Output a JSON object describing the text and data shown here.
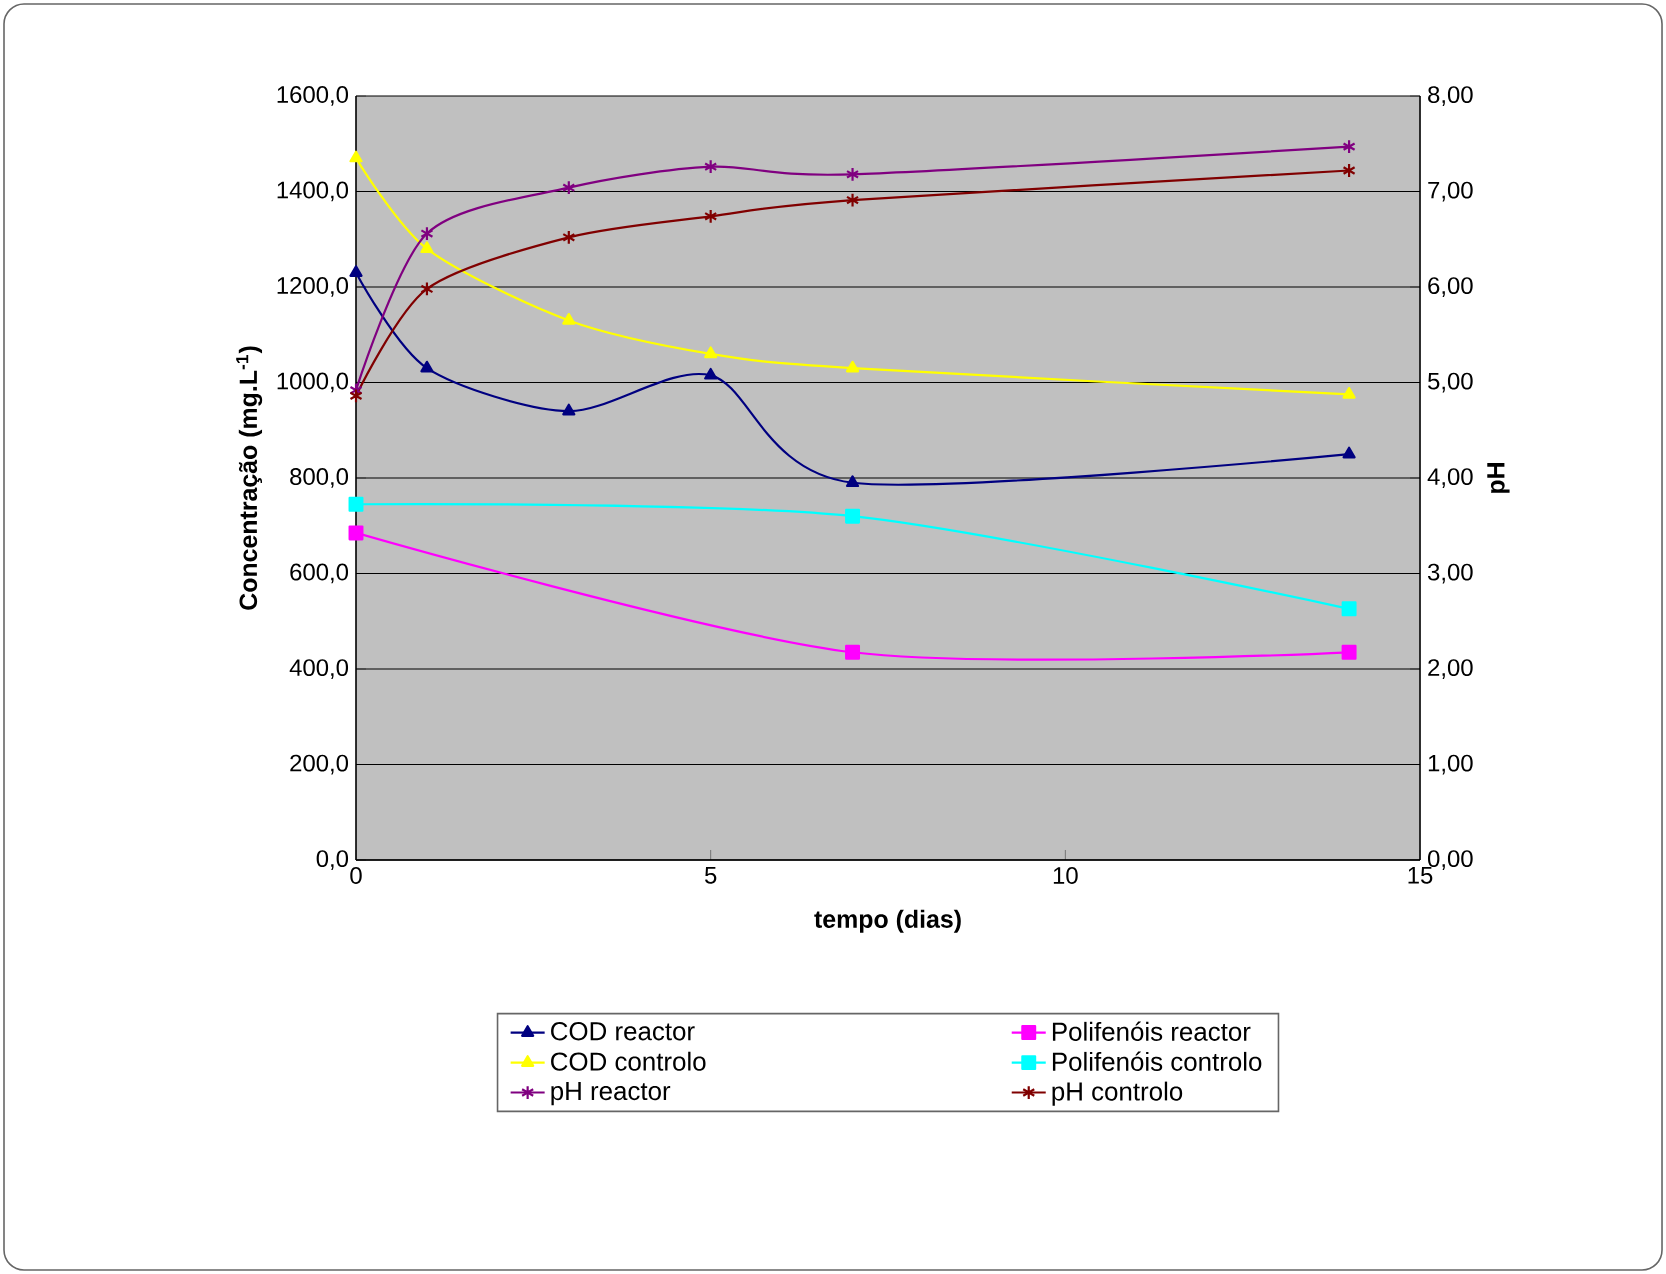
{
  "chart_data": {
    "type": "line",
    "xlabel": "tempo (dias)",
    "ylabel": "Concentração (mg.L$^{-1}$)",
    "y2label": "pH",
    "x": [
      0,
      1,
      3,
      5,
      7,
      14
    ],
    "xlim": [
      0,
      15
    ],
    "xticks": [
      0,
      5,
      10,
      15
    ],
    "ylim": [
      0,
      1600
    ],
    "yticks": [
      {
        "value": 0,
        "label": "0,0"
      },
      {
        "value": 200,
        "label": "200,0"
      },
      {
        "value": 400,
        "label": "400,0"
      },
      {
        "value": 600,
        "label": "600,0"
      },
      {
        "value": 800,
        "label": "800,0"
      },
      {
        "value": 1000,
        "label": "1000,0"
      },
      {
        "value": 1200,
        "label": "1200,0"
      },
      {
        "value": 1400,
        "label": "1400,0"
      },
      {
        "value": 1600,
        "label": "1600,0"
      }
    ],
    "y2lim": [
      0,
      8
    ],
    "y2ticks": [
      {
        "value": 0,
        "label": "0,00"
      },
      {
        "value": 1,
        "label": "1,00"
      },
      {
        "value": 2,
        "label": "2,00"
      },
      {
        "value": 3,
        "label": "3,00"
      },
      {
        "value": 4,
        "label": "4,00"
      },
      {
        "value": 5,
        "label": "5,00"
      },
      {
        "value": 6,
        "label": "6,00"
      },
      {
        "value": 7,
        "label": "7,00"
      },
      {
        "value": 8,
        "label": "8,00"
      }
    ],
    "grid": "y",
    "legend": "bottom",
    "series": [
      {
        "name": "COD reactor",
        "color": "#000080",
        "marker": "triangle",
        "values": [
          1230,
          1030,
          940,
          1015,
          790,
          850
        ]
      },
      {
        "name": "Polifenóis reactor",
        "color": "#ff00ff",
        "marker": "square",
        "x": [
          0,
          7,
          14
        ],
        "values": [
          685,
          435,
          435
        ]
      },
      {
        "name": "COD controlo",
        "color": "#ffff00",
        "marker": "triangle",
        "values": [
          1470,
          1280,
          1130,
          1060,
          1030,
          975
        ]
      },
      {
        "name": "Polifenóis controlo",
        "color": "#00ffff",
        "marker": "square",
        "x": [
          0,
          7,
          14
        ],
        "values": [
          745,
          720,
          526
        ]
      },
      {
        "name": "pH reactor",
        "color": "#800080",
        "marker": "cross",
        "axis": "y2",
        "values": [
          4.92,
          6.56,
          7.04,
          7.26,
          7.18,
          7.47
        ]
      },
      {
        "name": "pH controlo",
        "color": "#800000",
        "marker": "cross",
        "axis": "y2",
        "values": [
          4.86,
          5.98,
          6.52,
          6.74,
          6.91,
          7.22
        ]
      }
    ]
  }
}
